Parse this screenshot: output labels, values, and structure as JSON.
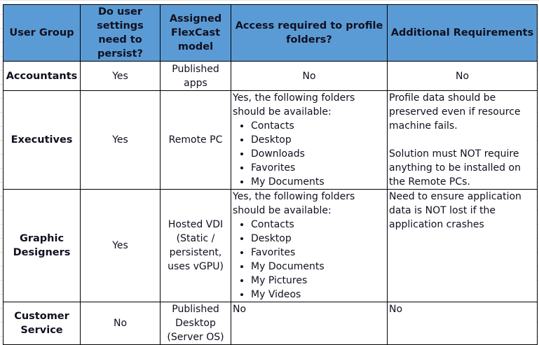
{
  "headers": [
    "User Group",
    "Do user settings need to persist?",
    "Assigned FlexCast model",
    "Access required to profile folders?",
    "Additional Requirements"
  ],
  "rows": [
    {
      "group": "Accountants",
      "persist": "Yes",
      "model": "Published apps",
      "access_intro": "No",
      "access_folders": [],
      "requirements": [
        "No"
      ]
    },
    {
      "group": "Executives",
      "persist": "Yes",
      "model": "Remote PC",
      "access_intro": "Yes, the following folders should be available:",
      "access_folders": [
        "Contacts",
        "Desktop",
        "Downloads",
        "Favorites",
        "My Documents"
      ],
      "requirements": [
        "Profile data should be preserved even if resource machine fails.",
        "Solution must NOT require anything to be installed on the Remote PCs."
      ]
    },
    {
      "group": "Graphic Designers",
      "persist": "Yes",
      "model": "Hosted VDI (Static / persistent, uses vGPU)",
      "access_intro": "Yes, the following folders should be available:",
      "access_folders": [
        "Contacts",
        "Desktop",
        "Favorites",
        "My Documents",
        "My Pictures",
        "My Videos"
      ],
      "requirements": [
        "Need to ensure application data is NOT lost if the application crashes"
      ]
    },
    {
      "group": "Customer Service",
      "persist": "No",
      "model": "Published Desktop (Server OS)",
      "access_intro": "No",
      "access_folders": [],
      "requirements": [
        "No"
      ]
    }
  ]
}
